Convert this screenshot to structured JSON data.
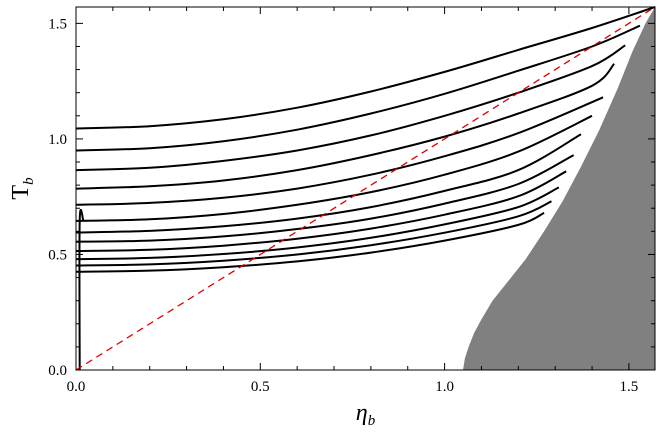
{
  "chart_data": {
    "type": "line",
    "title": "",
    "xlabel": {
      "main": "η",
      "sub": "b"
    },
    "ylabel": {
      "main": "T",
      "sub": "b"
    },
    "xlim": [
      0,
      1.5708
    ],
    "ylim": [
      0,
      1.5708
    ],
    "xticks": [
      {
        "value": 0.0,
        "label": "0.0"
      },
      {
        "value": 0.5,
        "label": "0.5"
      },
      {
        "value": 1.0,
        "label": "1.0"
      },
      {
        "value": 1.5,
        "label": "1.5"
      }
    ],
    "yticks": [
      {
        "value": 0.0,
        "label": "0.0"
      },
      {
        "value": 0.5,
        "label": "0.5"
      },
      {
        "value": 1.0,
        "label": "1.0"
      },
      {
        "value": 1.5,
        "label": "1.5"
      }
    ],
    "grid": false,
    "legend": "none",
    "series": [
      {
        "color": "#000000",
        "style": "solid",
        "x": [
          0,
          0.2,
          0.4,
          0.6,
          0.8,
          1.0,
          1.2,
          1.4,
          1.5708
        ],
        "y": [
          1.045,
          1.055,
          1.085,
          1.135,
          1.205,
          1.29,
          1.385,
          1.48,
          1.5708
        ]
      },
      {
        "color": "#000000",
        "style": "solid",
        "x": [
          0,
          0.2,
          0.4,
          0.6,
          0.8,
          1.0,
          1.2,
          1.4,
          1.53
        ],
        "y": [
          0.95,
          0.96,
          0.99,
          1.04,
          1.11,
          1.195,
          1.295,
          1.4,
          1.49
        ]
      },
      {
        "color": "#000000",
        "style": "solid",
        "x": [
          0,
          0.2,
          0.4,
          0.6,
          0.8,
          1.0,
          1.2,
          1.4,
          1.49
        ],
        "y": [
          0.865,
          0.875,
          0.905,
          0.95,
          1.015,
          1.1,
          1.2,
          1.315,
          1.405
        ]
      },
      {
        "color": "#000000",
        "style": "solid",
        "x": [
          0,
          0.2,
          0.4,
          0.6,
          0.8,
          1.0,
          1.2,
          1.4,
          1.46
        ],
        "y": [
          0.785,
          0.795,
          0.82,
          0.865,
          0.93,
          1.01,
          1.11,
          1.23,
          1.325
        ]
      },
      {
        "color": "#000000",
        "style": "solid",
        "x": [
          0,
          0.2,
          0.4,
          0.6,
          0.8,
          1.0,
          1.2,
          1.43
        ],
        "y": [
          0.715,
          0.723,
          0.745,
          0.785,
          0.845,
          0.925,
          1.025,
          1.18
        ]
      },
      {
        "color": "#000000",
        "style": "solid",
        "x": [
          0,
          0.2,
          0.4,
          0.6,
          0.8,
          1.0,
          1.2,
          1.4
        ],
        "y": [
          0.645,
          0.652,
          0.675,
          0.715,
          0.77,
          0.845,
          0.945,
          1.1
        ]
      },
      {
        "color": "#000000",
        "style": "solid",
        "x": [
          0,
          0.2,
          0.4,
          0.6,
          0.8,
          1.0,
          1.2,
          1.37
        ],
        "y": [
          0.595,
          0.602,
          0.622,
          0.655,
          0.705,
          0.775,
          0.865,
          1.02
        ]
      },
      {
        "color": "#000000",
        "style": "solid",
        "x": [
          0,
          0.2,
          0.4,
          0.6,
          0.8,
          1.0,
          1.2,
          1.35
        ],
        "y": [
          0.555,
          0.56,
          0.578,
          0.61,
          0.655,
          0.72,
          0.805,
          0.93
        ]
      },
      {
        "color": "#000000",
        "style": "solid",
        "x": [
          0,
          0.2,
          0.4,
          0.6,
          0.8,
          1.0,
          1.2,
          1.33
        ],
        "y": [
          0.515,
          0.52,
          0.538,
          0.568,
          0.612,
          0.672,
          0.752,
          0.86
        ]
      },
      {
        "color": "#000000",
        "style": "solid",
        "x": [
          0,
          0.2,
          0.4,
          0.6,
          0.8,
          1.0,
          1.2,
          1.31
        ],
        "y": [
          0.48,
          0.485,
          0.502,
          0.53,
          0.572,
          0.63,
          0.705,
          0.79
        ]
      },
      {
        "color": "#000000",
        "style": "solid",
        "x": [
          0,
          0.2,
          0.4,
          0.6,
          0.8,
          1.0,
          1.2,
          1.29
        ],
        "y": [
          0.452,
          0.457,
          0.473,
          0.5,
          0.54,
          0.594,
          0.665,
          0.73
        ]
      },
      {
        "color": "#000000",
        "style": "solid",
        "x": [
          0,
          0.2,
          0.4,
          0.6,
          0.8,
          1.0,
          1.2,
          1.27
        ],
        "y": [
          0.425,
          0.43,
          0.445,
          0.47,
          0.508,
          0.56,
          0.628,
          0.68
        ]
      },
      {
        "color": "#000000",
        "style": "solid",
        "x": [
          0.01,
          0.01,
          0.02
        ],
        "y": [
          0.0,
          0.645,
          0.645
        ]
      },
      {
        "color": "#dd0000",
        "style": "dashed",
        "x": [
          0,
          1.5708
        ],
        "y": [
          0,
          1.5708
        ]
      }
    ],
    "regions": [
      {
        "color": "#808080",
        "boundary": [
          [
            1.05,
            0.0
          ],
          [
            1.055,
            0.05
          ],
          [
            1.065,
            0.1
          ],
          [
            1.08,
            0.16
          ],
          [
            1.1,
            0.22
          ],
          [
            1.13,
            0.3
          ],
          [
            1.17,
            0.38
          ],
          [
            1.22,
            0.48
          ],
          [
            1.27,
            0.6
          ],
          [
            1.32,
            0.73
          ],
          [
            1.37,
            0.88
          ],
          [
            1.42,
            1.04
          ],
          [
            1.47,
            1.22
          ],
          [
            1.51,
            1.38
          ],
          [
            1.545,
            1.5
          ],
          [
            1.5708,
            1.5708
          ],
          [
            1.5708,
            0.0
          ]
        ]
      }
    ]
  }
}
